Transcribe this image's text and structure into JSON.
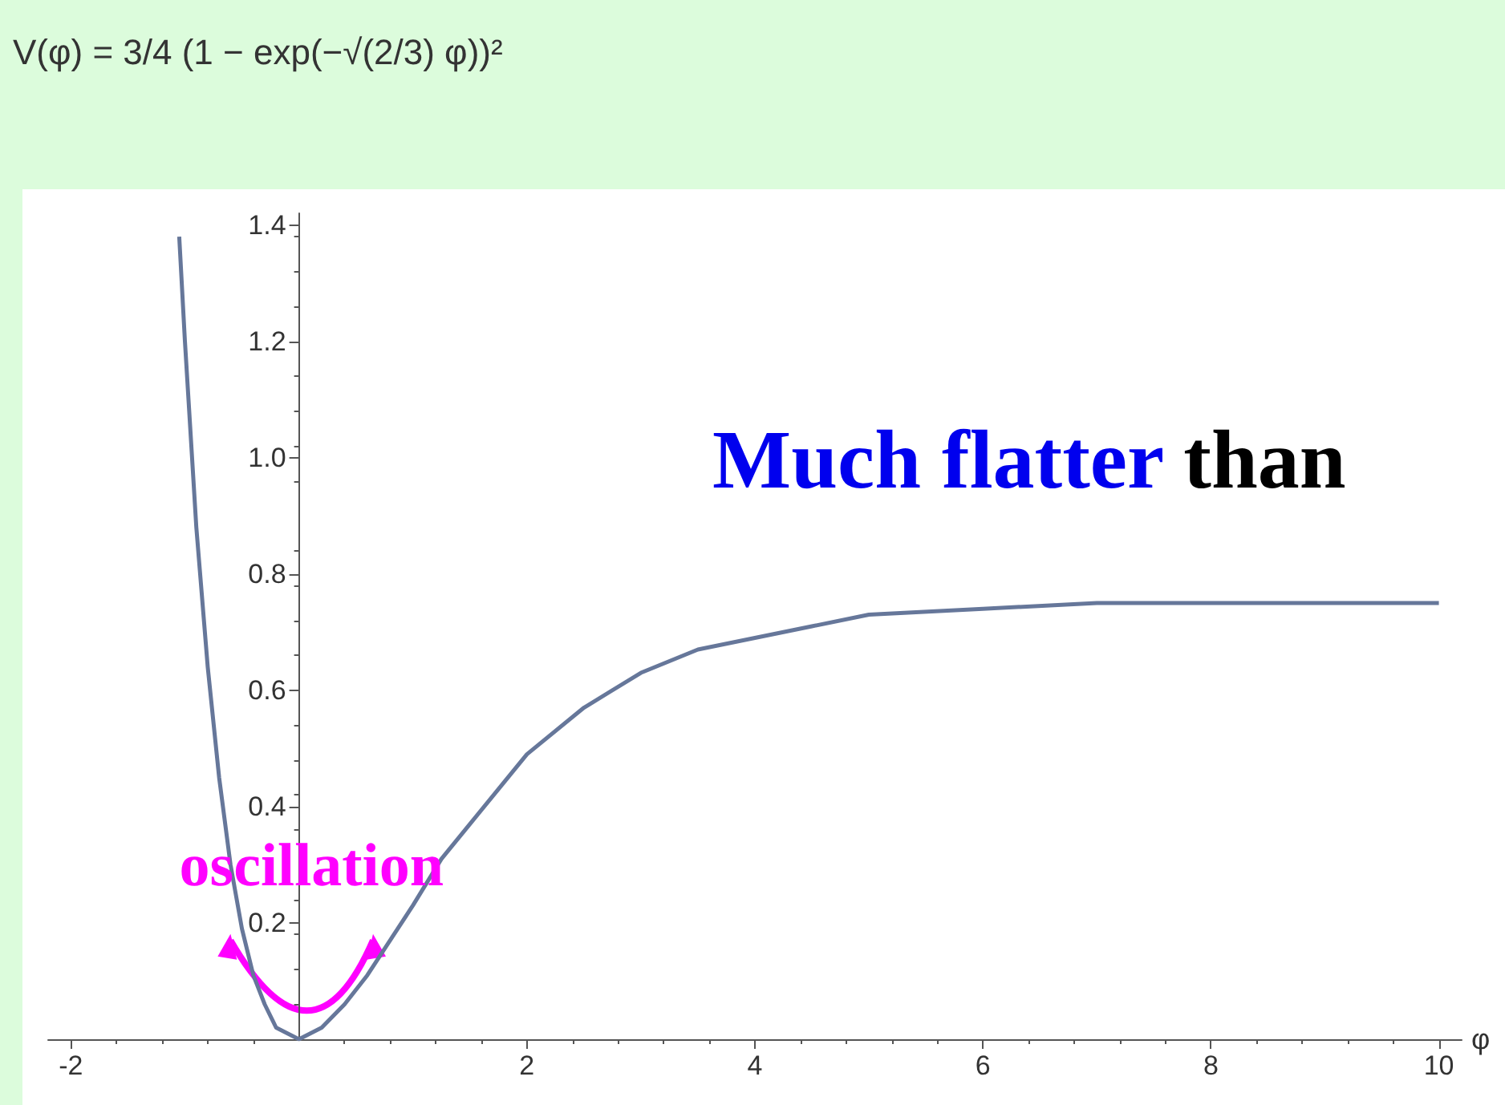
{
  "chart_data": {
    "type": "line",
    "title": "V(φ) = 3/4 (1 − exp(−√(2/3) φ))²",
    "xlabel": "φ",
    "x": [
      -1.05,
      -1,
      -0.9,
      -0.8,
      -0.7,
      -0.6,
      -0.5,
      -0.4,
      -0.3,
      -0.2,
      -0.1,
      0,
      0.2,
      0.4,
      0.6,
      0.8,
      1,
      1.25,
      1.5,
      1.75,
      2,
      2.5,
      3,
      3.5,
      4,
      4.5,
      5,
      6,
      7,
      8,
      9,
      10
    ],
    "series": [
      {
        "color": "#66779a",
        "values": [
          1.38,
          1.2,
          0.88,
          0.64,
          0.45,
          0.3,
          0.19,
          0.11,
          0.06,
          0.02,
          0.01,
          0,
          0.02,
          0.06,
          0.11,
          0.17,
          0.23,
          0.31,
          0.37,
          0.43,
          0.49,
          0.57,
          0.63,
          0.67,
          0.69,
          0.71,
          0.73,
          0.74,
          0.75,
          0.75,
          0.75,
          0.75
        ]
      }
    ],
    "xlim": [
      -2.2,
      10.2
    ],
    "ylim": [
      0,
      1.42
    ],
    "xticks": [
      -2,
      2,
      4,
      6,
      8,
      10
    ],
    "yticks": [
      0.2,
      0.4,
      0.6,
      0.8,
      {
        "value": 1,
        "label": "1.0"
      },
      1.2,
      1.4
    ],
    "marker": "none",
    "line_style": "solid",
    "annotations": [
      "Much flatter",
      "than",
      {
        "text": "oscillation",
        "x": 0,
        "y": 0
      }
    ]
  }
}
